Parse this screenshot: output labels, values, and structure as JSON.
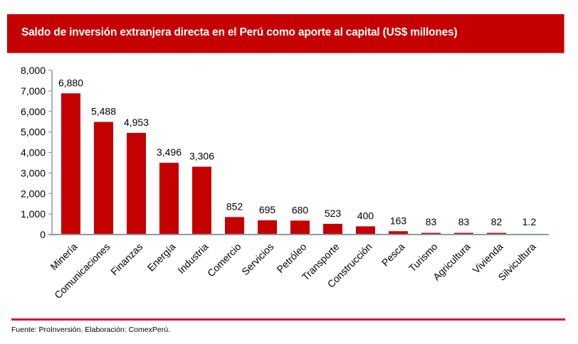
{
  "header": {
    "title": "Saldo de inversión extranjera directa en el Perú como aporte al capital (US$ millones)"
  },
  "footer": {
    "source": "Fuente: ProInversión. Elaboración: ComexPerú."
  },
  "colors": {
    "bar": "#c40000",
    "title_band": "#c40000",
    "axis": "#8c9ca3",
    "footer_line": "#d6163c"
  },
  "chart_data": {
    "type": "bar",
    "title": "Saldo de inversión extranjera directa en el Perú como aporte al capital (US$ millones)",
    "xlabel": "",
    "ylabel": "",
    "ylim": [
      0,
      8000
    ],
    "yticks": [
      0,
      1000,
      2000,
      3000,
      4000,
      5000,
      6000,
      7000,
      8000
    ],
    "ytick_labels": [
      "0",
      "1,000",
      "2,000",
      "3,000",
      "4,000",
      "5,000",
      "6,000",
      "7,000",
      "8,000"
    ],
    "grid": false,
    "legend": "none",
    "categories": [
      "Minería",
      "Comunicaciones",
      "Finanzas",
      "Energía",
      "Industria",
      "Comercio",
      "Servicios",
      "Petróleo",
      "Transporte",
      "Construcción",
      "Pesca",
      "Turismo",
      "Agricultura",
      "Vivienda",
      "Silvicultura"
    ],
    "values": [
      6880,
      5488,
      4953,
      3496,
      3306,
      852,
      695,
      680,
      523,
      400,
      163,
      83,
      83,
      82,
      1.2
    ],
    "data_labels": [
      "6,880",
      "5,488",
      "4,953",
      "3,496",
      "3,306",
      "852",
      "695",
      "680",
      "523",
      "400",
      "163",
      "83",
      "83",
      "82",
      "1.2"
    ]
  }
}
